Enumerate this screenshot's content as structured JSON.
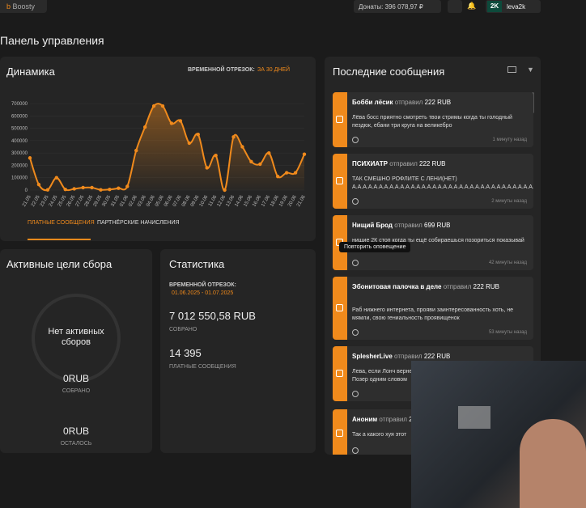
{
  "header": {
    "brand": "Boosty",
    "donations": "Донаты: 396 078,97 ₽",
    "avatar": "2K",
    "user": "leva2k"
  },
  "page_title": "Панель управления",
  "dynamics": {
    "title": "Динамика",
    "period_label": "ВРЕМЕННОЙ ОТРЕЗОК:",
    "period_value": "ЗА 30 ДНЕЙ",
    "tabs": [
      "ПЛАТНЫЕ СООБЩЕНИЯ",
      "ПАРТНЁРСКИЕ НАЧИСЛЕНИЯ"
    ]
  },
  "chart_data": {
    "type": "line",
    "color": "#f08a1c",
    "categories": [
      "21.05",
      "22.05",
      "23.05",
      "24.05",
      "25.05",
      "26.05",
      "27.05",
      "28.05",
      "29.05",
      "30.05",
      "31.05",
      "01.06",
      "02.06",
      "03.06",
      "04.06",
      "05.06",
      "06.06",
      "07.06",
      "08.06",
      "09.06",
      "10.06",
      "11.06",
      "12.06",
      "13.06",
      "14.06",
      "15.06",
      "16.06",
      "17.06",
      "18.06",
      "19.06",
      "20.06",
      "21.06"
    ],
    "values": [
      260000,
      45000,
      2000,
      100000,
      5000,
      10000,
      20000,
      20000,
      2000,
      5000,
      15000,
      30000,
      320000,
      510000,
      680000,
      680000,
      540000,
      560000,
      380000,
      450000,
      180000,
      280000,
      0,
      430000,
      350000,
      230000,
      210000,
      300000,
      110000,
      140000,
      140000,
      290000
    ],
    "ylim": [
      0,
      700000
    ],
    "yticks": [
      0,
      100000,
      200000,
      300000,
      400000,
      500000,
      600000,
      700000
    ],
    "grid": true
  },
  "goals": {
    "title": "Активные цели сбора",
    "empty": "Нет активных сборов",
    "collected_value": "0RUB",
    "collected_label": "СОБРАНО",
    "left_value": "0RUB",
    "left_label": "ОСТАЛОСЬ"
  },
  "stats": {
    "title": "Статистика",
    "period_label": "ВРЕМЕННОЙ ОТРЕЗОК:",
    "period_value": "01.06.2025 - 01.07.2025",
    "sum_value": "7 012 550,58 RUB",
    "sum_label": "СОБРАНО",
    "count_value": "14 395",
    "count_label": "ПЛАТНЫЕ СООБЩЕНИЯ"
  },
  "messages": {
    "title": "Последние сообщения",
    "tooltip": "Повторить оповещение",
    "items": [
      {
        "name": "Бобби лёсик",
        "verb": "отправил",
        "amount": "222 RUB",
        "text": "Лёва босс приятно смотреть твои стримы когда ты голодный пездюк, ебани три круга на великебро",
        "time": "1 минуту назад"
      },
      {
        "name": "ПСИХИАТР",
        "verb": "отправил",
        "amount": "222 RUB",
        "text": "ТАК СМЕШНО РОФЛИТЕ С ЛЕНИ(НЕТ) А.А.А.А.А.А.А.А.А.А.А.А.А.А.А.А.А.А.А.А.А.А.А.А.А.А.А.А.А.А.А.А.А.А.А.А.А.А.А",
        "time": "2 минуты назад"
      },
      {
        "name": "Нищий Брод",
        "verb": "отправил",
        "amount": "699 RUB",
        "text": "нищие 2К стоп когда ты ещё собираешься позориться показывай постыдился бы лох",
        "time": "42 минуты назад"
      },
      {
        "name": "Эбонитовая палочка в деле",
        "verb": "отправил",
        "amount": "222 RUB",
        "text": "Раб нижнего интернета, прояви заинтересованность хоть, не мямли, свою гениальность проявищенок",
        "time": "53 минуты назад"
      },
      {
        "name": "SplesherLive",
        "verb": "отправил",
        "amount": "222 RUB",
        "text": "Лева, если Лонч вернется, спросите его за важу, пожалуйста. Позер одним словом",
        "time": ""
      },
      {
        "name": "Аноним",
        "verb": "отправил",
        "amount": "222",
        "text": "Так а какого хуя этот",
        "time": ""
      }
    ]
  }
}
